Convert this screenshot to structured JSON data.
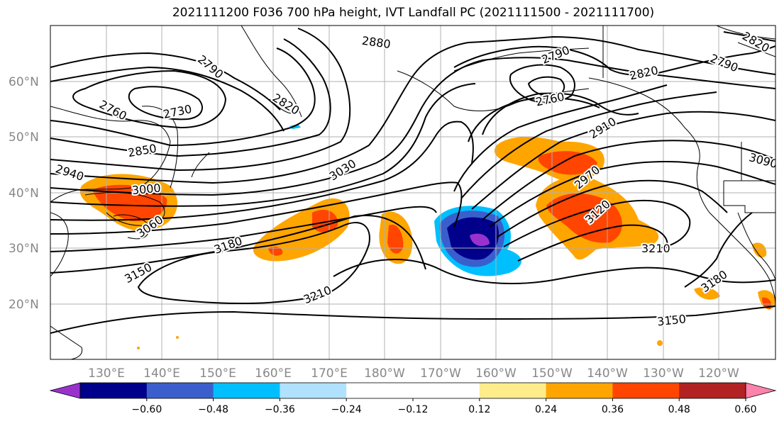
{
  "title": "2021111200 F036 700 hPa height, IVT Landfall PC (2021111500 - 2021111700)",
  "lat_labels": [
    "60°N",
    "50°N",
    "40°N",
    "30°N",
    "20°N"
  ],
  "lon_labels": [
    "130°E",
    "140°E",
    "150°E",
    "160°E",
    "170°E",
    "180°W",
    "170°W",
    "160°W",
    "150°W",
    "140°W",
    "130°W",
    "120°W"
  ],
  "colorbar": {
    "colors": [
      "#9932CC",
      "#00008B",
      "#3A5FCD",
      "#00BFFF",
      "#B0E2FF",
      "#FFFFFF",
      "#FFFFFF",
      "#FFEC8B",
      "#FFA500",
      "#FF4500",
      "#B22222",
      "#FF82AB"
    ],
    "tick_labels": [
      "−0.60",
      "−0.48",
      "−0.36",
      "−0.24",
      "−0.12",
      "0.12",
      "0.24",
      "0.36",
      "0.48",
      "0.60"
    ]
  },
  "contour_labels": [
    "2880",
    "2790",
    "2790",
    "2760",
    "2730",
    "2820",
    "2760",
    "2820",
    "2790",
    "2820",
    "2850",
    "2910",
    "3030",
    "2940",
    "2970",
    "3000",
    "3060",
    "3120",
    "3180",
    "3150",
    "3210",
    "3210",
    "3180",
    "3150",
    "3090"
  ]
}
